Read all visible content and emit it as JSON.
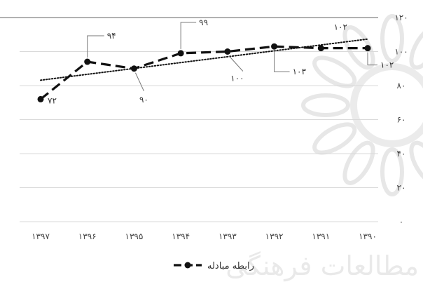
{
  "chart_data": {
    "type": "line",
    "categories": [
      "۱۳۹۷",
      "۱۳۹۶",
      "۱۳۹۵",
      "۱۳۹۴",
      "۱۳۹۳",
      "۱۳۹۲",
      "۱۳۹۱",
      "۱۳۹۰"
    ],
    "series": [
      {
        "name": "رابطه مبادله",
        "values": [
          72,
          94,
          90,
          99,
          100,
          103,
          102,
          102
        ],
        "data_labels": [
          "۷۲",
          "۹۴",
          "۹۰",
          "۹۹",
          "۱۰۰",
          "۱۰۳",
          "۱۰۲",
          "۱۰۲"
        ],
        "line_style": "dashed",
        "marker": "circle",
        "color": "#111111"
      }
    ],
    "trendline": {
      "type": "linear",
      "style": "dotted",
      "color": "#111111"
    },
    "y_ticks": [
      {
        "value": 0,
        "label": "۰"
      },
      {
        "value": 20,
        "label": "۲۰"
      },
      {
        "value": 40,
        "label": "۴۰"
      },
      {
        "value": 60,
        "label": "۶۰"
      },
      {
        "value": 80,
        "label": "۸۰"
      },
      {
        "value": 100,
        "label": "۱۰۰"
      },
      {
        "value": 120,
        "label": "۱۲۰"
      }
    ],
    "ylim": [
      0,
      120
    ],
    "y_axis_position": "right",
    "grid": true,
    "legend_position": "bottom",
    "title": "",
    "xlabel": "",
    "ylabel": ""
  },
  "watermark": {
    "text": "مطالعات فرهنگی"
  }
}
